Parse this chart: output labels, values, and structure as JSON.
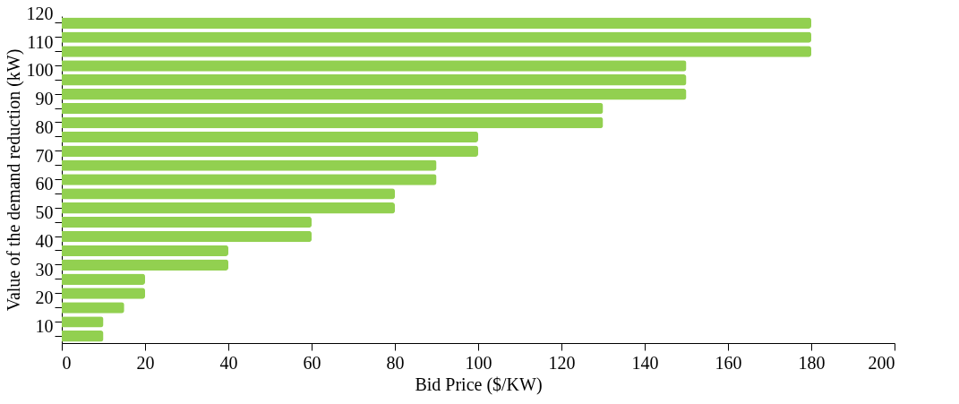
{
  "chart_data": {
    "type": "bar",
    "orientation": "horizontal",
    "xlabel": "Bid Price ($/KW)",
    "ylabel": "Value of the demand reduction (kW)",
    "categories": [
      "120",
      null,
      "110",
      null,
      "100",
      null,
      "90",
      null,
      "80",
      null,
      "70",
      null,
      "60",
      null,
      "50",
      null,
      "40",
      null,
      "30",
      null,
      "20",
      null,
      "10"
    ],
    "values": [
      180,
      180,
      180,
      150,
      150,
      150,
      130,
      130,
      100,
      100,
      90,
      90,
      80,
      80,
      60,
      60,
      40,
      40,
      20,
      20,
      15,
      10,
      10
    ],
    "color": "#92d050",
    "xlim": [
      0,
      200
    ],
    "xticks": [
      0,
      20,
      40,
      60,
      80,
      100,
      120,
      140,
      160,
      180,
      200
    ],
    "grid": false
  }
}
